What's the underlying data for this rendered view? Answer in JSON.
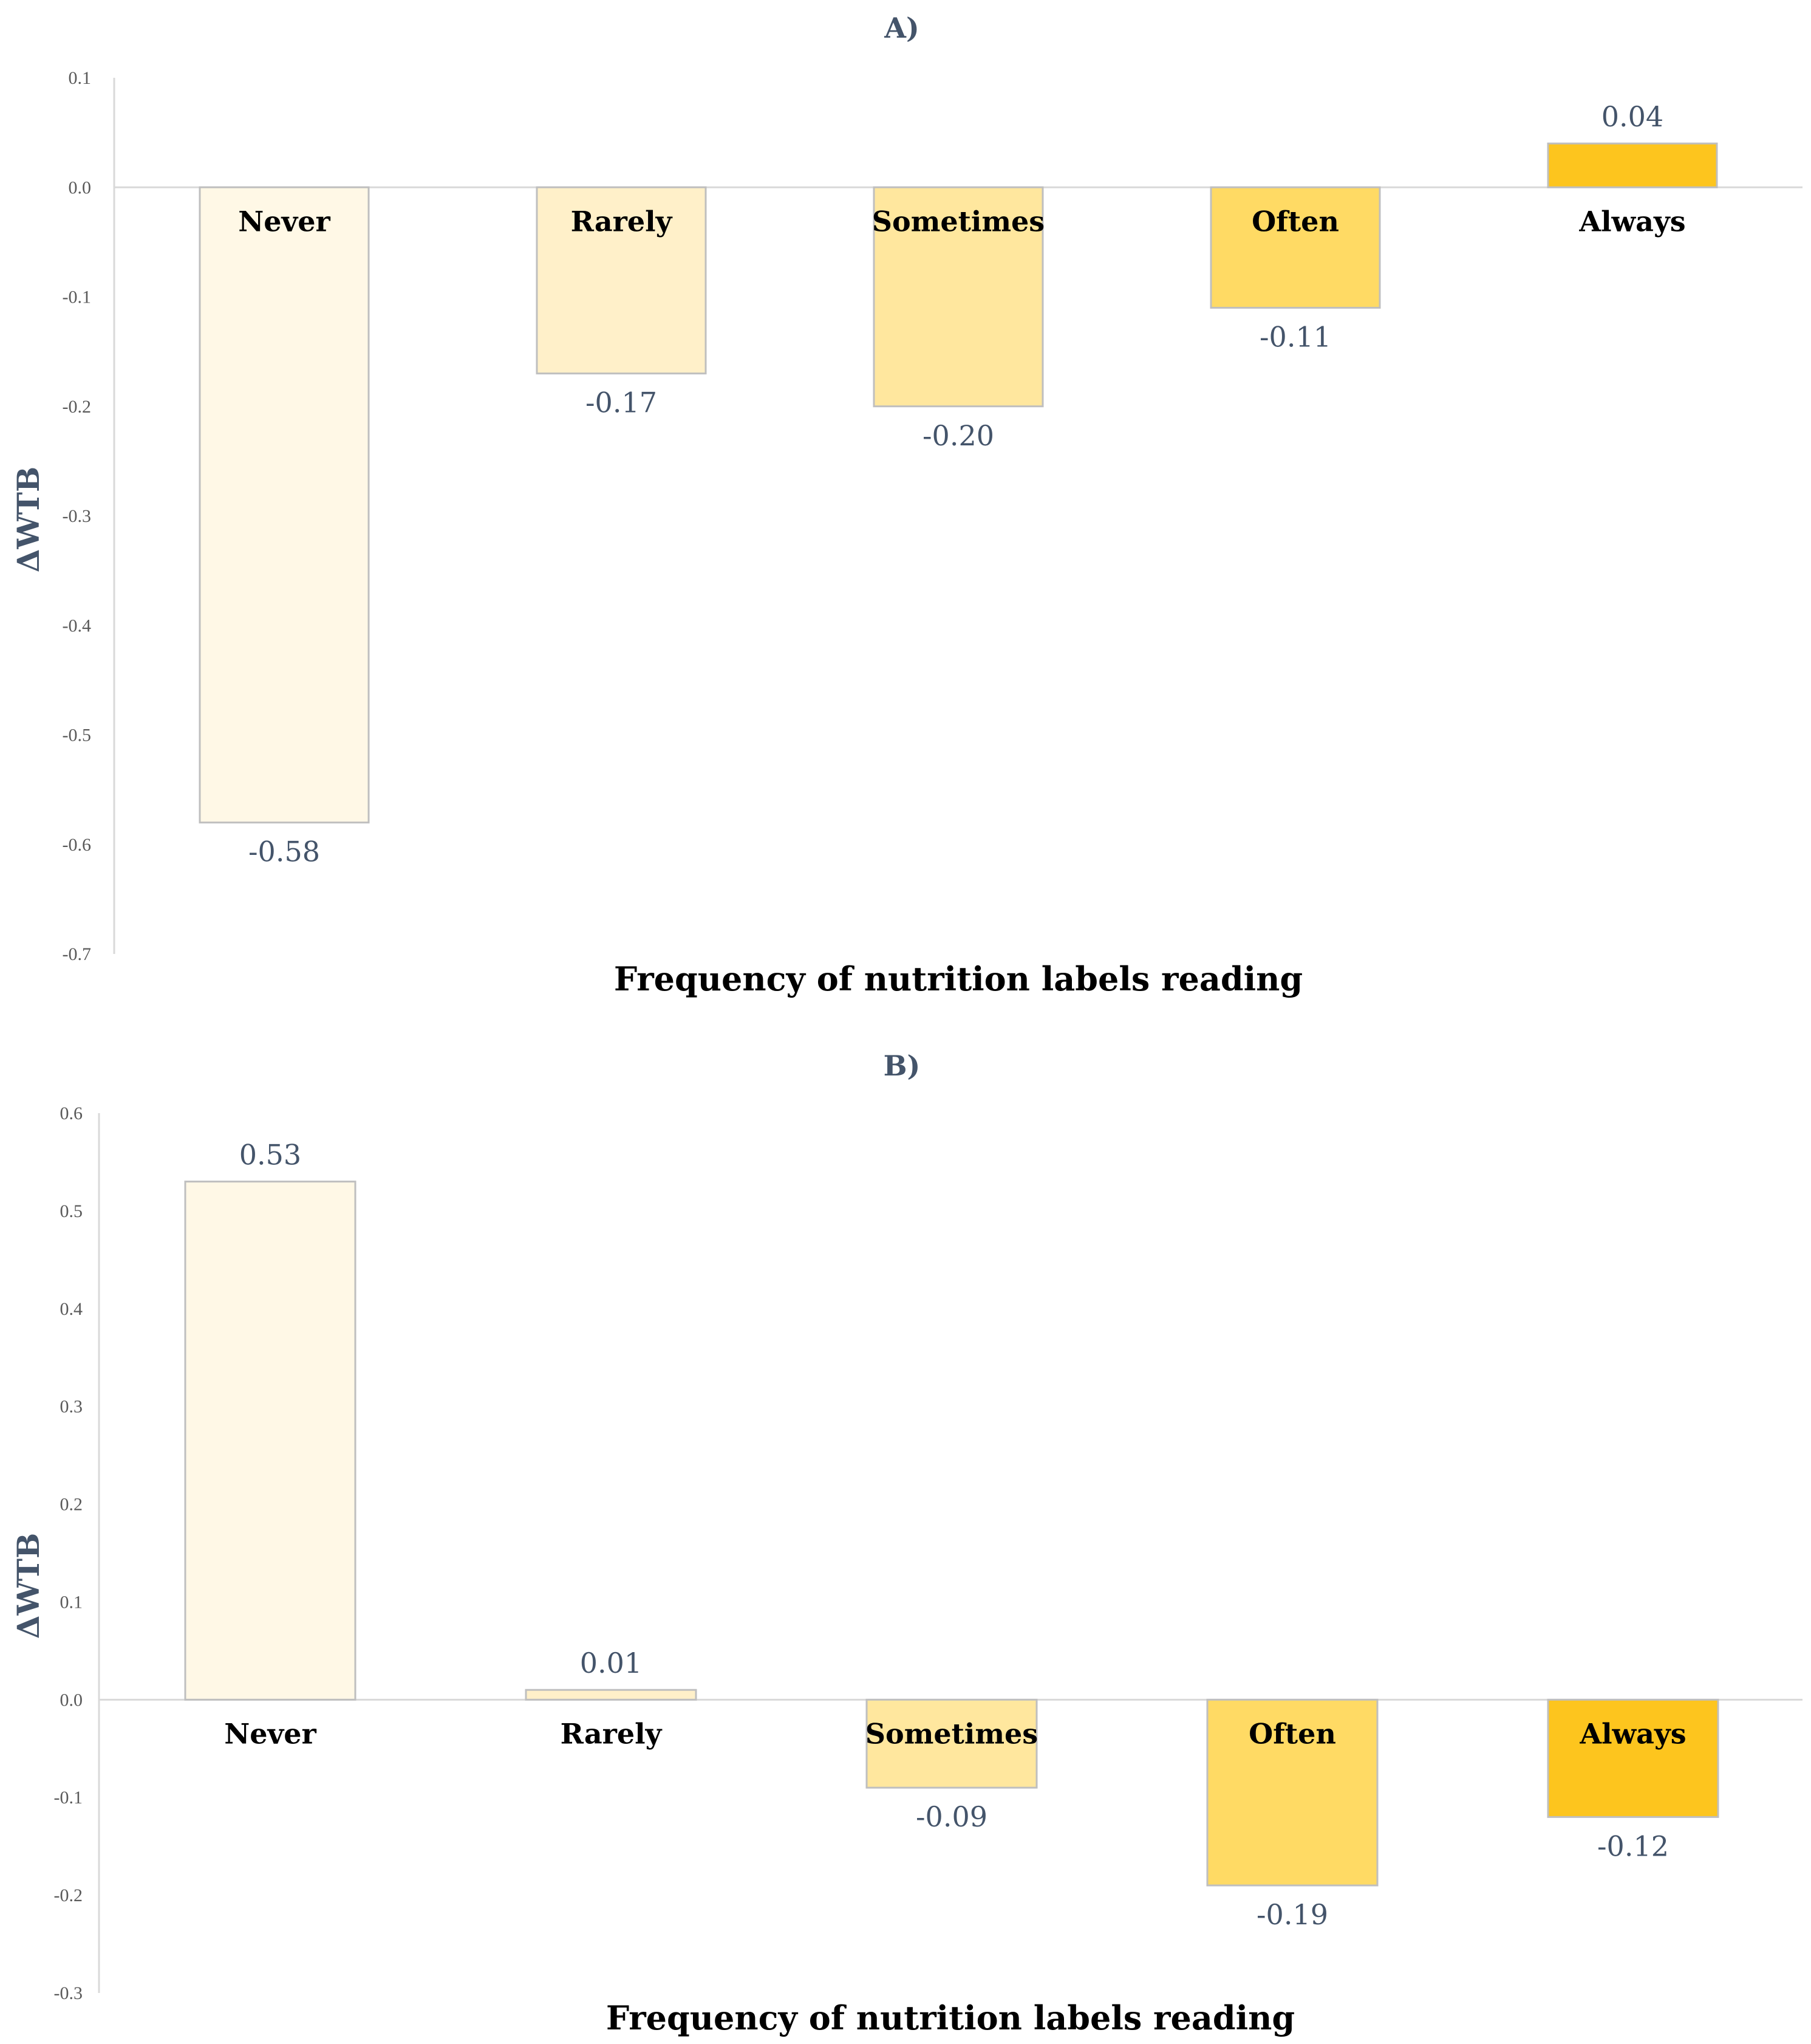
{
  "chart_data": [
    {
      "type": "bar",
      "panel": "A)",
      "title": "A)",
      "xlabel": "Frequency of nutrition labels reading",
      "ylabel": "ΔWTB",
      "categories": [
        "Never",
        "Rarely",
        "Sometimes",
        "Often",
        "Always"
      ],
      "values": [
        -0.58,
        -0.17,
        -0.2,
        -0.11,
        0.04
      ],
      "value_labels": [
        "-0.58",
        "-0.17",
        "-0.20",
        "-0.11",
        "0.04"
      ],
      "colors": [
        "#fff8e6",
        "#fff0c9",
        "#ffe79e",
        "#ffda64",
        "#fdc51e"
      ],
      "ylim": [
        -0.7,
        0.1
      ],
      "yticks": [
        0.1,
        0.0,
        -0.1,
        -0.2,
        -0.3,
        -0.4,
        -0.5,
        -0.6,
        -0.7
      ],
      "ytick_labels": [
        "0.1",
        "0.0",
        "-0.1",
        "-0.2",
        "-0.3",
        "-0.4",
        "-0.5",
        "-0.6",
        "-0.7"
      ],
      "grid": false,
      "legend": "none"
    },
    {
      "type": "bar",
      "panel": "B)",
      "title": "B)",
      "xlabel": "Frequency of nutrition labels reading",
      "ylabel": "ΔWTB",
      "categories": [
        "Never",
        "Rarely",
        "Sometimes",
        "Often",
        "Always"
      ],
      "values": [
        0.53,
        0.01,
        -0.09,
        -0.19,
        -0.12
      ],
      "value_labels": [
        "0.53",
        "0.01",
        "-0.09",
        "-0.19",
        "-0.12"
      ],
      "colors": [
        "#fff8e6",
        "#fff0c9",
        "#ffe79e",
        "#ffda64",
        "#fdc51e"
      ],
      "ylim": [
        -0.3,
        0.6
      ],
      "yticks": [
        0.6,
        0.5,
        0.4,
        0.3,
        0.2,
        0.1,
        0.0,
        -0.1,
        -0.2,
        -0.3
      ],
      "ytick_labels": [
        "0.6",
        "0.5",
        "0.4",
        "0.3",
        "0.2",
        "0.1",
        "0.0",
        "-0.1",
        "-0.2",
        "-0.3"
      ],
      "grid": false,
      "legend": "none"
    }
  ]
}
